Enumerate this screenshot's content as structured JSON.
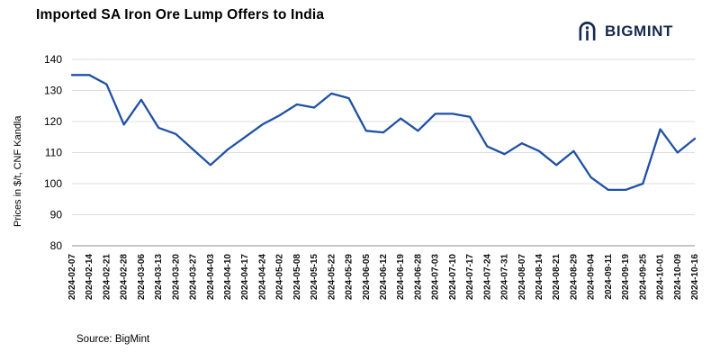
{
  "header": {
    "title": "Imported SA Iron Ore Lump Offers to India"
  },
  "logo": {
    "text": "BIGMINT",
    "icon": "bigmint-m-arch-icon",
    "color": "#16294f"
  },
  "footer": {
    "source": "Source: BigMint"
  },
  "chart_data": {
    "type": "line",
    "title": "Imported SA Iron Ore Lump Offers to India",
    "xlabel": "",
    "ylabel": "Prices in $/t, CNF Kandla",
    "ylim": [
      80,
      140
    ],
    "ytick_step": 10,
    "grid": true,
    "grid_color": "#dcdcdc",
    "axis_color": "#8c8c8c",
    "legend": false,
    "x": [
      "2024-02-07",
      "2024-02-14",
      "2024-02-21",
      "2024-02-28",
      "2024-03-06",
      "2024-03-13",
      "2024-03-20",
      "2024-03-27",
      "2024-04-03",
      "2024-04-10",
      "2024-04-17",
      "2024-04-24",
      "2024-05-02",
      "2024-05-08",
      "2024-05-15",
      "2024-05-22",
      "2024-05-29",
      "2024-06-05",
      "2024-06-12",
      "2024-06-19",
      "2024-06-28",
      "2024-07-03",
      "2024-07-10",
      "2024-07-17",
      "2024-07-24",
      "2024-07-31",
      "2024-08-07",
      "2024-08-14",
      "2024-08-21",
      "2024-08-29",
      "2024-09-04",
      "2024-09-11",
      "2024-09-19",
      "2024-09-25",
      "2024-10-01",
      "2024-10-09",
      "2024-10-16"
    ],
    "series": [
      {
        "name": "Imported SA Iron Ore Lump Offer",
        "color": "#1f51a4",
        "values": [
          135,
          135,
          132,
          119,
          127,
          118,
          116,
          111,
          106,
          111,
          115,
          119,
          122,
          125.5,
          124.5,
          129,
          127.5,
          117,
          116.5,
          121,
          117,
          122.5,
          122.5,
          121.5,
          112,
          109.5,
          113,
          110.5,
          106,
          110.5,
          102,
          98,
          98,
          100,
          117.5,
          110,
          114.5
        ]
      }
    ]
  }
}
